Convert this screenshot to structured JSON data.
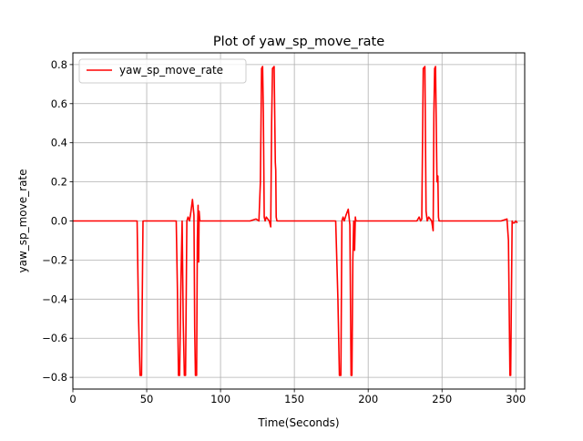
{
  "chart_data": {
    "type": "line",
    "title": "Plot of yaw_sp_move_rate",
    "xlabel": "Time(Seconds)",
    "ylabel": "yaw_sp_move_rate",
    "xlim": [
      0,
      306
    ],
    "ylim": [
      -0.86,
      0.86
    ],
    "xticks": [
      0,
      50,
      100,
      150,
      200,
      250,
      300
    ],
    "yticks": [
      -0.8,
      -0.6,
      -0.4,
      -0.2,
      0.0,
      0.2,
      0.4,
      0.6,
      0.8
    ],
    "xtick_labels": [
      "0",
      "50",
      "100",
      "150",
      "200",
      "250",
      "300"
    ],
    "ytick_labels": [
      "−0.8",
      "−0.6",
      "−0.4",
      "−0.2",
      "0.0",
      "0.2",
      "0.4",
      "0.6",
      "0.8"
    ],
    "grid": true,
    "legend": {
      "position": "top-left",
      "entries": [
        "yaw_sp_move_rate"
      ]
    },
    "series": [
      {
        "name": "yaw_sp_move_rate",
        "color": "#ff0000",
        "x": [
          0,
          42,
          43.5,
          44.5,
          45.5,
          46.5,
          47.5,
          50,
          55,
          60,
          65,
          70,
          70.8,
          71.5,
          72.3,
          73.2,
          74,
          74.7,
          75.5,
          76.3,
          77.2,
          78,
          79,
          80,
          81,
          82,
          82.5,
          83,
          83.8,
          84.3,
          84.8,
          85.2,
          85.5,
          86,
          86.5,
          88,
          90,
          100,
          110,
          120,
          124,
          126,
          127,
          127.8,
          128.5,
          129,
          129.6,
          130.2,
          131,
          132,
          133,
          134,
          134.6,
          135.2,
          136.3,
          137.1,
          137.4,
          137.7,
          138.2,
          139,
          141,
          145,
          150,
          155,
          160,
          165,
          170,
          175,
          178,
          179.5,
          180.5,
          181.5,
          182.2,
          183,
          183.8,
          185,
          186.5,
          187.6,
          188.4,
          189,
          189.6,
          190.2,
          190.8,
          191.3,
          191.7,
          192.1,
          193,
          195,
          200,
          210,
          220,
          230,
          233,
          234.5,
          235.5,
          236.3,
          237.3,
          238.4,
          239.2,
          240,
          241,
          242,
          243,
          244,
          244.5,
          245,
          245.6,
          246.6,
          247.2,
          247.6,
          248,
          248.6,
          250,
          255,
          260,
          270,
          280,
          290,
          294,
          295,
          296,
          296.5,
          297.5,
          298,
          299,
          300,
          301
        ],
        "y": [
          0,
          0,
          0,
          -0.5,
          -0.79,
          -0.79,
          0,
          0,
          0,
          0,
          0,
          0,
          -0.35,
          -0.79,
          -0.79,
          -0.3,
          0,
          -0.5,
          -0.79,
          -0.79,
          0,
          0.02,
          0,
          0.05,
          0.11,
          0.03,
          -0.55,
          -0.79,
          -0.79,
          -0.1,
          0.08,
          -0.21,
          0.05,
          0,
          0,
          0,
          0,
          0,
          0,
          0,
          0.01,
          0,
          0.2,
          0.78,
          0.79,
          0.55,
          0.02,
          0,
          0.02,
          0.01,
          0,
          -0.03,
          0.5,
          0.78,
          0.79,
          0.3,
          0.26,
          0.02,
          0,
          0,
          0,
          0,
          0,
          0,
          0,
          0,
          0,
          0,
          0,
          -0.4,
          -0.79,
          -0.79,
          0,
          0.02,
          0,
          0.03,
          0.06,
          -0.02,
          -0.79,
          -0.79,
          -0.2,
          0,
          -0.15,
          0.02,
          0,
          0,
          0,
          0,
          0,
          0,
          0,
          0,
          0,
          0.02,
          0,
          0.01,
          0.78,
          0.79,
          0.05,
          0,
          0.02,
          0.01,
          0,
          -0.05,
          0.55,
          0.78,
          0.79,
          0.2,
          0.23,
          0.02,
          0,
          0,
          0,
          0,
          0,
          0,
          0,
          0,
          0.01,
          -0.1,
          -0.79,
          -0.79,
          0,
          -0.01,
          -0.01,
          0,
          -0.01
        ]
      }
    ]
  }
}
